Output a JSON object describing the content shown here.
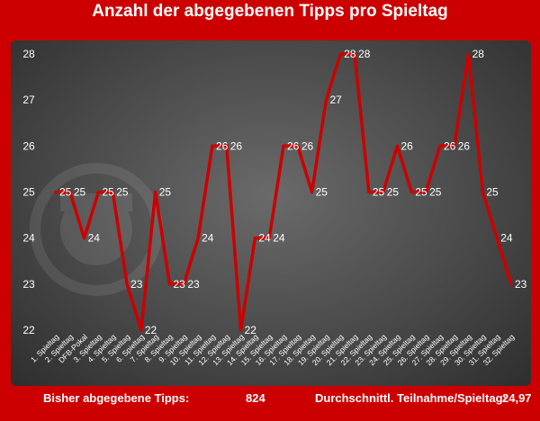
{
  "title": "Anzahl der abgegebenen Tipps pro Spieltag",
  "footer": {
    "tips_label": "Bisher abgegebene Tipps:",
    "tips_value": "824",
    "avg_label": "Durchschnittl. Teilnahme/Spieltag:",
    "avg_value": "24,97"
  },
  "colors": {
    "background": "#cc0000",
    "line": "#cc0000",
    "text": "#ffffff"
  },
  "chart_data": {
    "type": "line",
    "title": "Anzahl der abgegebenen Tipps pro Spieltag",
    "xlabel": "",
    "ylabel": "",
    "ylim": [
      22,
      28
    ],
    "yticks": [
      22,
      23,
      24,
      25,
      26,
      27,
      28
    ],
    "grid": false,
    "legend": "none",
    "categories": [
      "1. Spieltag",
      "2. Spieltag",
      "DFB-Pokal",
      "3. Spieltag",
      "4. Spieltag",
      "5. Spieltag",
      "6. Spieltag",
      "7. Spieltag",
      "8. Spieltag",
      "9. Spieltag",
      "10. Spieltag",
      "11. Spieltag",
      "12. Spieltag",
      "13. Spieltag",
      "14. Spieltag",
      "15. Spieltag",
      "16. Spieltag",
      "17. Spieltag",
      "18. Spieltag",
      "19. Spieltag",
      "20. Spieltag",
      "21. Spieltag",
      "22. Spieltag",
      "23. Spieltag",
      "24. Spieltag",
      "25. Spieltag",
      "26. Spieltag",
      "27. Spieltag",
      "28. Spieltag",
      "29. Spieltag",
      "30. Spieltag",
      "31. Spieltag",
      "32. Spieltag"
    ],
    "values": [
      25,
      25,
      24,
      25,
      25,
      23,
      22,
      25,
      23,
      23,
      24,
      26,
      26,
      22,
      24,
      24,
      26,
      26,
      25,
      27,
      28,
      28,
      25,
      25,
      26,
      25,
      25,
      26,
      26,
      28,
      25,
      24,
      23
    ]
  }
}
